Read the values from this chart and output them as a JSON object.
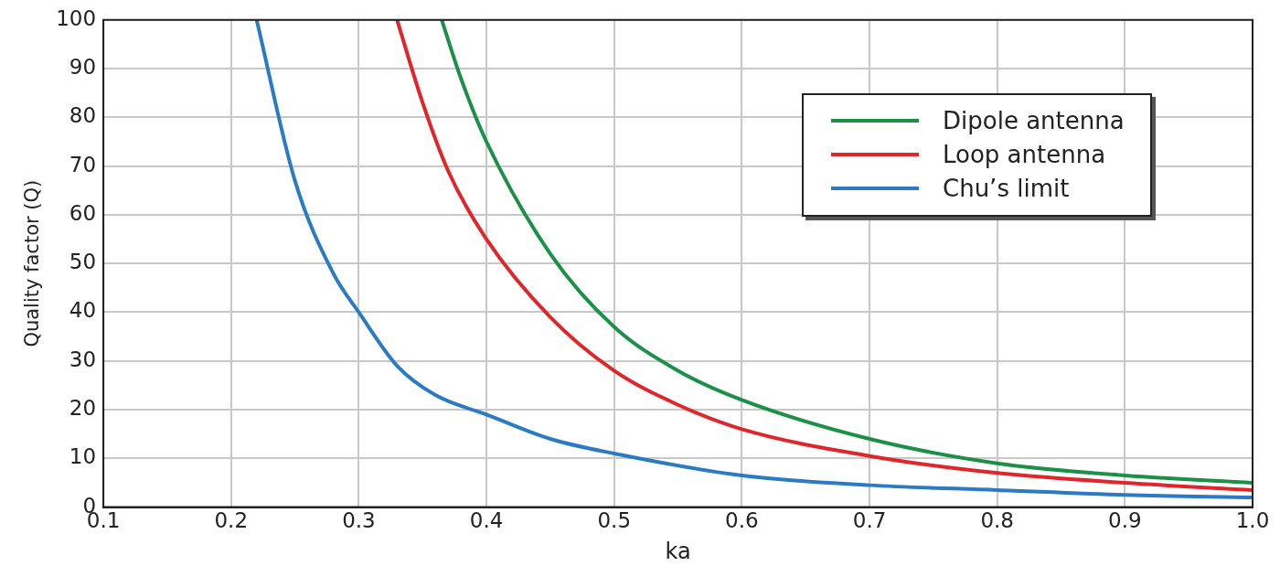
{
  "chart_data": {
    "type": "line",
    "xlabel": "ka",
    "ylabel": "Quality factor (Q)",
    "xlim": [
      0.1,
      1.0
    ],
    "xticks": [
      {
        "value": 0.1,
        "label": "0.1"
      },
      {
        "value": 0.2,
        "label": "0.2"
      },
      {
        "value": 0.3,
        "label": "0.3"
      },
      {
        "value": 0.4,
        "label": "0.4"
      },
      {
        "value": 0.5,
        "label": "0.5"
      },
      {
        "value": 0.6,
        "label": "0.6"
      },
      {
        "value": 0.7,
        "label": "0.7"
      },
      {
        "value": 0.8,
        "label": "0.8"
      },
      {
        "value": 0.9,
        "label": "0.9"
      },
      {
        "value": 1.0,
        "label": "1.0"
      }
    ],
    "ylim": [
      0,
      100
    ],
    "yticks": [
      0,
      10,
      20,
      30,
      40,
      50,
      60,
      70,
      80,
      90,
      100
    ],
    "grid": true,
    "legend": "top right",
    "marker": "none",
    "line_style": "solid",
    "series": [
      {
        "name": "Dipole antenna",
        "color": "#1a9146",
        "x": [
          0.365,
          0.38,
          0.4,
          0.45,
          0.5,
          0.55,
          0.6,
          0.7,
          0.8,
          0.9,
          1.0
        ],
        "values": [
          100,
          88,
          75,
          52,
          37,
          28,
          22,
          14,
          9,
          6.5,
          5
        ]
      },
      {
        "name": "Loop antenna",
        "color": "#e0262b",
        "x": [
          0.33,
          0.35,
          0.37,
          0.4,
          0.45,
          0.5,
          0.55,
          0.6,
          0.7,
          0.8,
          0.9,
          1.0
        ],
        "values": [
          100,
          83,
          69,
          55,
          39,
          28,
          21,
          16,
          10.5,
          7,
          5,
          3.5
        ]
      },
      {
        "name": "Chu’s limit",
        "color": "#2b7bc4",
        "x": [
          0.22,
          0.25,
          0.28,
          0.3,
          0.33,
          0.36,
          0.4,
          0.45,
          0.5,
          0.6,
          0.7,
          0.8,
          0.9,
          1.0
        ],
        "values": [
          100,
          67,
          48,
          40,
          29,
          23,
          19,
          14,
          11,
          6.5,
          4.5,
          3.5,
          2.5,
          2
        ]
      }
    ]
  }
}
